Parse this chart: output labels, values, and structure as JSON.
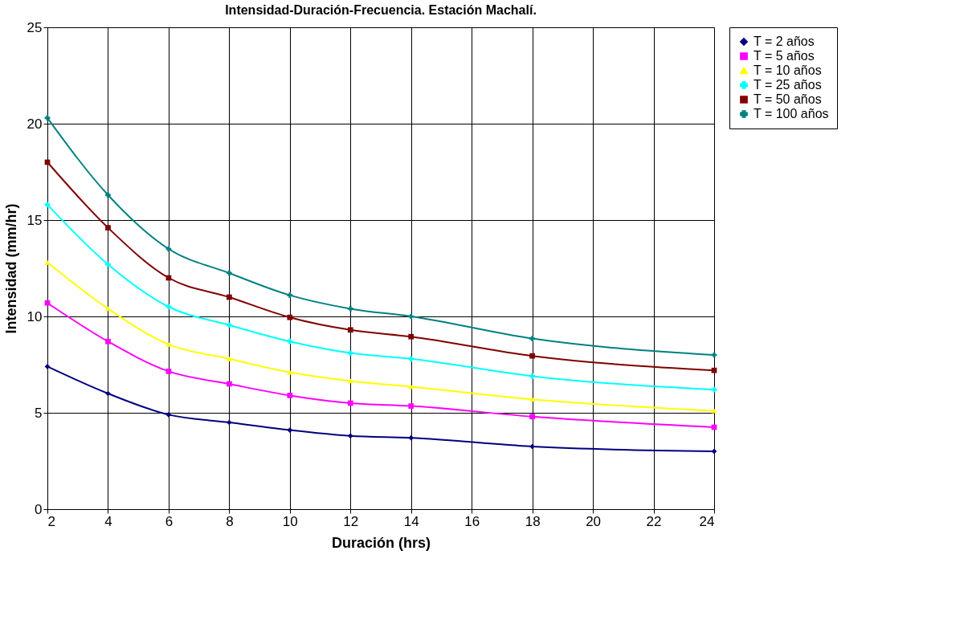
{
  "chart_data": {
    "type": "line",
    "title": "Intensidad-Duración-Frecuencia. Estación Machalí.",
    "xlabel": "Duración (hrs)",
    "ylabel": "Intensidad (mm/hr)",
    "x": [
      2,
      4,
      6,
      8,
      10,
      12,
      14,
      18,
      24
    ],
    "series": [
      {
        "name": "T = 2 años",
        "color": "#000080",
        "marker": "diamond",
        "values": [
          7.4,
          6.0,
          4.9,
          4.5,
          4.1,
          3.8,
          3.7,
          3.25,
          3.0
        ]
      },
      {
        "name": "T = 5 años",
        "color": "#ff00ff",
        "marker": "square",
        "values": [
          10.7,
          8.7,
          7.15,
          6.5,
          5.9,
          5.5,
          5.35,
          4.8,
          4.25
        ]
      },
      {
        "name": "T = 10 años",
        "color": "#ffff00",
        "marker": "triangle",
        "values": [
          12.8,
          10.4,
          8.55,
          7.8,
          7.1,
          6.65,
          6.35,
          5.7,
          5.1
        ]
      },
      {
        "name": "T = 25 años",
        "color": "#00ffff",
        "marker": "cross",
        "values": [
          15.8,
          12.7,
          10.5,
          9.55,
          8.7,
          8.1,
          7.8,
          6.9,
          6.2
        ]
      },
      {
        "name": "T = 50 años",
        "color": "#800000",
        "marker": "square",
        "values": [
          18.0,
          14.6,
          12.0,
          11.0,
          9.95,
          9.3,
          8.95,
          7.95,
          7.2
        ]
      },
      {
        "name": "T = 100 años",
        "color": "#008080",
        "marker": "cross",
        "values": [
          20.3,
          16.3,
          13.5,
          12.25,
          11.1,
          10.4,
          10.0,
          8.85,
          8.0
        ]
      }
    ],
    "xlim": [
      2,
      24
    ],
    "xticks": [
      2,
      4,
      6,
      8,
      10,
      12,
      14,
      16,
      18,
      20,
      22,
      24
    ],
    "ylim": [
      0,
      25
    ],
    "yticks": [
      0,
      5,
      10,
      15,
      20,
      25
    ],
    "grid": true,
    "legend": "right",
    "line_style": "solid"
  }
}
